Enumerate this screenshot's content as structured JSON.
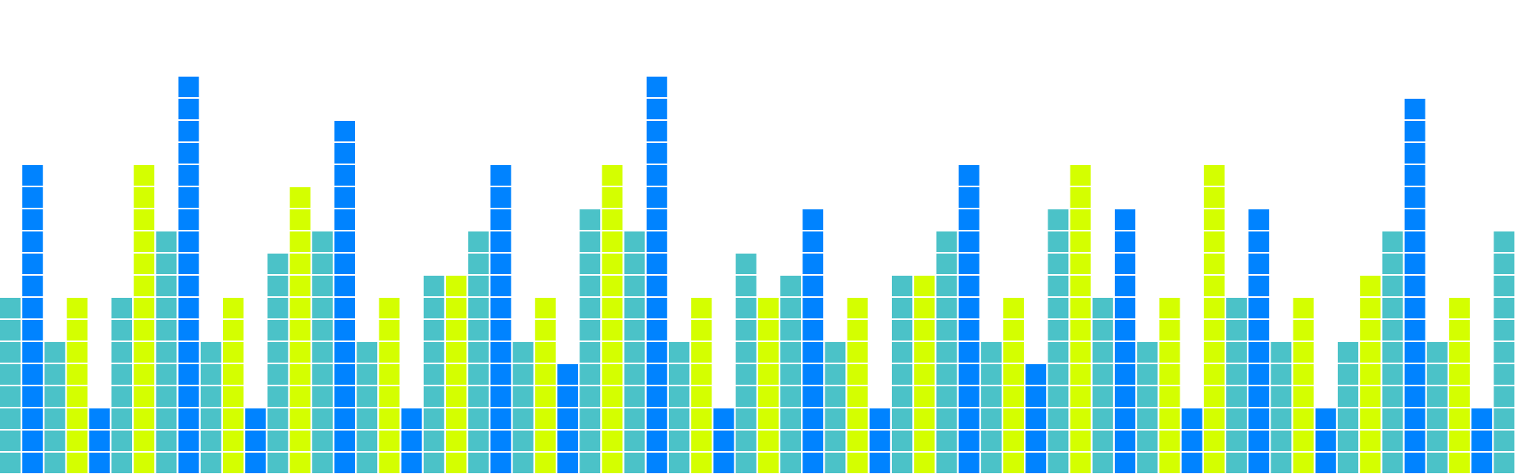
{
  "colors": {
    "background": "#ffffff",
    "teal": "#4bc2c8",
    "blue": "#0083ff",
    "lime": "#d4ff00",
    "cell_border": "#ffffff"
  },
  "equalizer": {
    "columns": [
      {
        "color": "teal",
        "level": 8
      },
      {
        "color": "blue",
        "level": 14
      },
      {
        "color": "teal",
        "level": 6
      },
      {
        "color": "lime",
        "level": 8
      },
      {
        "color": "blue",
        "level": 3
      },
      {
        "color": "teal",
        "level": 8
      },
      {
        "color": "lime",
        "level": 14
      },
      {
        "color": "teal",
        "level": 11
      },
      {
        "color": "blue",
        "level": 18
      },
      {
        "color": "teal",
        "level": 6
      },
      {
        "color": "lime",
        "level": 8
      },
      {
        "color": "blue",
        "level": 3
      },
      {
        "color": "teal",
        "level": 10
      },
      {
        "color": "lime",
        "level": 13
      },
      {
        "color": "teal",
        "level": 11
      },
      {
        "color": "blue",
        "level": 16
      },
      {
        "color": "teal",
        "level": 6
      },
      {
        "color": "lime",
        "level": 8
      },
      {
        "color": "blue",
        "level": 3
      },
      {
        "color": "teal",
        "level": 9
      },
      {
        "color": "lime",
        "level": 9
      },
      {
        "color": "teal",
        "level": 11
      },
      {
        "color": "blue",
        "level": 14
      },
      {
        "color": "teal",
        "level": 6
      },
      {
        "color": "lime",
        "level": 8
      },
      {
        "color": "blue",
        "level": 5
      },
      {
        "color": "teal",
        "level": 12
      },
      {
        "color": "lime",
        "level": 14
      },
      {
        "color": "teal",
        "level": 11
      },
      {
        "color": "blue",
        "level": 18
      },
      {
        "color": "teal",
        "level": 6
      },
      {
        "color": "lime",
        "level": 8
      },
      {
        "color": "blue",
        "level": 3
      },
      {
        "color": "teal",
        "level": 10
      },
      {
        "color": "lime",
        "level": 8
      },
      {
        "color": "teal",
        "level": 9
      },
      {
        "color": "blue",
        "level": 12
      },
      {
        "color": "teal",
        "level": 6
      },
      {
        "color": "lime",
        "level": 8
      },
      {
        "color": "blue",
        "level": 3
      },
      {
        "color": "teal",
        "level": 9
      },
      {
        "color": "lime",
        "level": 9
      },
      {
        "color": "teal",
        "level": 11
      },
      {
        "color": "blue",
        "level": 14
      },
      {
        "color": "teal",
        "level": 6
      },
      {
        "color": "lime",
        "level": 8
      },
      {
        "color": "blue",
        "level": 5
      },
      {
        "color": "teal",
        "level": 12
      },
      {
        "color": "lime",
        "level": 14
      },
      {
        "color": "teal",
        "level": 8
      },
      {
        "color": "blue",
        "level": 12
      },
      {
        "color": "teal",
        "level": 6
      },
      {
        "color": "lime",
        "level": 8
      },
      {
        "color": "blue",
        "level": 3
      },
      {
        "color": "lime",
        "level": 14
      },
      {
        "color": "teal",
        "level": 8
      },
      {
        "color": "blue",
        "level": 12
      },
      {
        "color": "teal",
        "level": 6
      },
      {
        "color": "lime",
        "level": 8
      },
      {
        "color": "blue",
        "level": 3
      },
      {
        "color": "teal",
        "level": 6
      },
      {
        "color": "lime",
        "level": 9
      },
      {
        "color": "teal",
        "level": 11
      },
      {
        "color": "blue",
        "level": 17
      },
      {
        "color": "teal",
        "level": 6
      },
      {
        "color": "lime",
        "level": 8
      },
      {
        "color": "blue",
        "level": 3
      },
      {
        "color": "teal",
        "level": 11
      }
    ]
  }
}
